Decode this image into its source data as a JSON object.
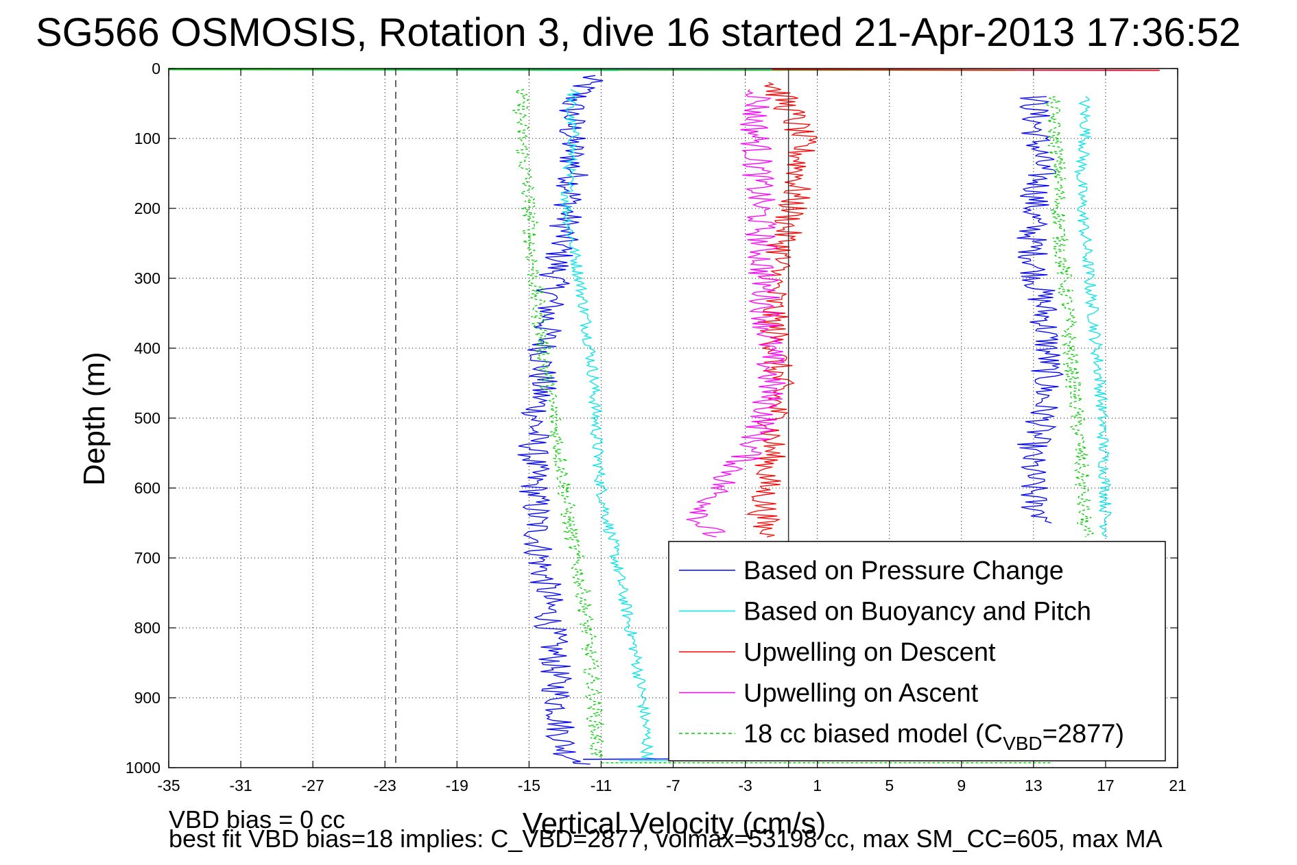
{
  "title": "SG566 OSMOSIS, Rotation 3, dive 16 started 21-Apr-2013 17:36:52",
  "footer": {
    "line1": "VBD bias = 0 cc",
    "line2": "best fit VBD bias=18 implies: C_VBD=2877, volmax=53198 cc, max SM_CC=605, max MA"
  },
  "colors": {
    "pressure": "#0000ff",
    "buoyancy": "#00e5e5",
    "descent": "#ff0000",
    "ascent": "#ff00ff",
    "model": "#00cc00"
  },
  "chart_data": {
    "type": "line",
    "xlabel": "Vertical Velocity (cm/s)",
    "ylabel": "Depth (m)",
    "xlim": [
      -35,
      21
    ],
    "ylim": [
      1000,
      0
    ],
    "y_reversed": true,
    "grid": true,
    "legend_position": "bottom-right",
    "xticks": [
      "-35",
      "-31",
      "-27",
      "-23",
      "-19",
      "-15",
      "-11",
      "-7",
      "-3",
      "1",
      "5",
      "9",
      "13",
      "17",
      "21"
    ],
    "yticks": [
      "0",
      "100",
      "200",
      "300",
      "400",
      "500",
      "600",
      "700",
      "800",
      "900",
      "1000"
    ],
    "reference_lines": [
      {
        "x": -22.4,
        "style": "dashed"
      },
      {
        "x": -0.6,
        "style": "solid"
      }
    ],
    "legend": [
      {
        "key": "pressure",
        "label": "Based on Pressure Change",
        "dashed": false
      },
      {
        "key": "buoyancy",
        "label": "Based on Buoyancy and Pitch",
        "dashed": false
      },
      {
        "key": "descent",
        "label": "Upwelling on Descent",
        "dashed": false
      },
      {
        "key": "ascent",
        "label": "Upwelling on Ascent",
        "dashed": false
      },
      {
        "key": "model",
        "label": "18 cc biased model (C",
        "sub": "VBD",
        "suffix": "=2877)",
        "dashed": true
      }
    ],
    "series": [
      {
        "key": "pressure",
        "name": "Based on Pressure Change",
        "x": [
          -11.6,
          -12.6,
          -12.7,
          -12.5,
          -12.8,
          -13.2,
          -13.6,
          -13.9,
          -14.2,
          -14.3,
          -14.6,
          -14.8,
          -14.7,
          -14.6,
          -14.4,
          -14.0,
          -13.8,
          -13.6,
          -13.4,
          -13.2,
          -13.0,
          -12.6,
          -12.2,
          -11.8,
          -11.6
        ],
        "y": [
          10,
          50,
          100,
          150,
          200,
          250,
          300,
          350,
          400,
          450,
          500,
          550,
          600,
          650,
          700,
          750,
          800,
          850,
          900,
          950,
          975,
          985,
          990,
          992,
          995
        ]
      },
      {
        "key": "pressure_ascent",
        "name": "Based on Pressure Change",
        "x": [
          13.0,
          13.2,
          13.4,
          13.0,
          12.9,
          13.2,
          13.6,
          13.8,
          13.7,
          13.5,
          12.8,
          13.0,
          14.0
        ],
        "y": [
          40,
          100,
          150,
          200,
          250,
          300,
          350,
          400,
          450,
          500,
          550,
          625,
          650
        ]
      },
      {
        "key": "buoyancy",
        "name": "Based on Buoyancy and Pitch",
        "x": [
          -12.5,
          -12.8,
          -12.5,
          -12.8,
          -12.9,
          -12.6,
          -12.2,
          -11.9,
          -11.6,
          -11.4,
          -11.3,
          -11.2,
          -11.0,
          -10.6,
          -10.2,
          -9.8,
          -9.4,
          -9.0,
          -8.7,
          -8.5,
          -8.4,
          -8.0
        ],
        "y": [
          30,
          60,
          100,
          150,
          200,
          250,
          300,
          350,
          400,
          450,
          500,
          550,
          600,
          650,
          700,
          750,
          800,
          850,
          900,
          950,
          985,
          990
        ]
      },
      {
        "key": "buoyancy_ascent",
        "name": "Based on Buoyancy and Pitch",
        "x": [
          15.8,
          15.9,
          15.6,
          15.7,
          15.9,
          16.1,
          16.3,
          16.5,
          16.7,
          16.8,
          16.9,
          17.0,
          17.0,
          17.1
        ],
        "y": [
          40,
          100,
          150,
          200,
          250,
          300,
          350,
          400,
          450,
          500,
          550,
          600,
          650,
          670
        ]
      },
      {
        "key": "descent",
        "name": "Upwelling on Descent",
        "x": [
          -1.5,
          -0.5,
          0.1,
          0.0,
          -0.4,
          -0.9,
          -1.4,
          -1.5,
          -1.3,
          -1.2,
          -1.4,
          -1.6,
          -1.9,
          -2.0,
          -1.8
        ],
        "y": [
          20,
          60,
          100,
          150,
          200,
          250,
          300,
          350,
          400,
          450,
          500,
          550,
          600,
          650,
          670
        ]
      },
      {
        "key": "ascent",
        "name": "Upwelling on Ascent",
        "x": [
          -2.1,
          -2.5,
          -2.4,
          -2.3,
          -2.2,
          -2.1,
          -2.0,
          -1.8,
          -1.7,
          -1.6,
          -1.9,
          -2.8,
          -4.5,
          -5.5,
          -4.6
        ],
        "y": [
          30,
          70,
          100,
          150,
          200,
          250,
          300,
          350,
          400,
          450,
          500,
          550,
          600,
          650,
          670
        ]
      },
      {
        "key": "model",
        "name": "18 cc biased model (CVBD=2877)",
        "x": [
          -15.5,
          -15.4,
          -15.2,
          -15.0,
          -14.9,
          -14.7,
          -14.5,
          -14.2,
          -14.0,
          -13.6,
          -13.3,
          -13.0,
          -12.8,
          -12.4,
          -12.0,
          -11.8,
          -11.6,
          -11.4,
          -11.3,
          -11.2
        ],
        "y": [
          30,
          100,
          150,
          200,
          250,
          300,
          350,
          400,
          450,
          500,
          550,
          600,
          650,
          700,
          750,
          800,
          850,
          900,
          950,
          985
        ]
      },
      {
        "key": "model_ascent",
        "name": "18 cc biased model (CVBD=2877)",
        "x": [
          14.0,
          14.2,
          14.4,
          14.4,
          14.5,
          14.7,
          14.9,
          15.0,
          15.2,
          15.4,
          15.6,
          15.7,
          15.8,
          15.9
        ],
        "y": [
          40,
          100,
          150,
          200,
          250,
          300,
          350,
          400,
          450,
          500,
          550,
          600,
          650,
          670
        ]
      }
    ]
  }
}
